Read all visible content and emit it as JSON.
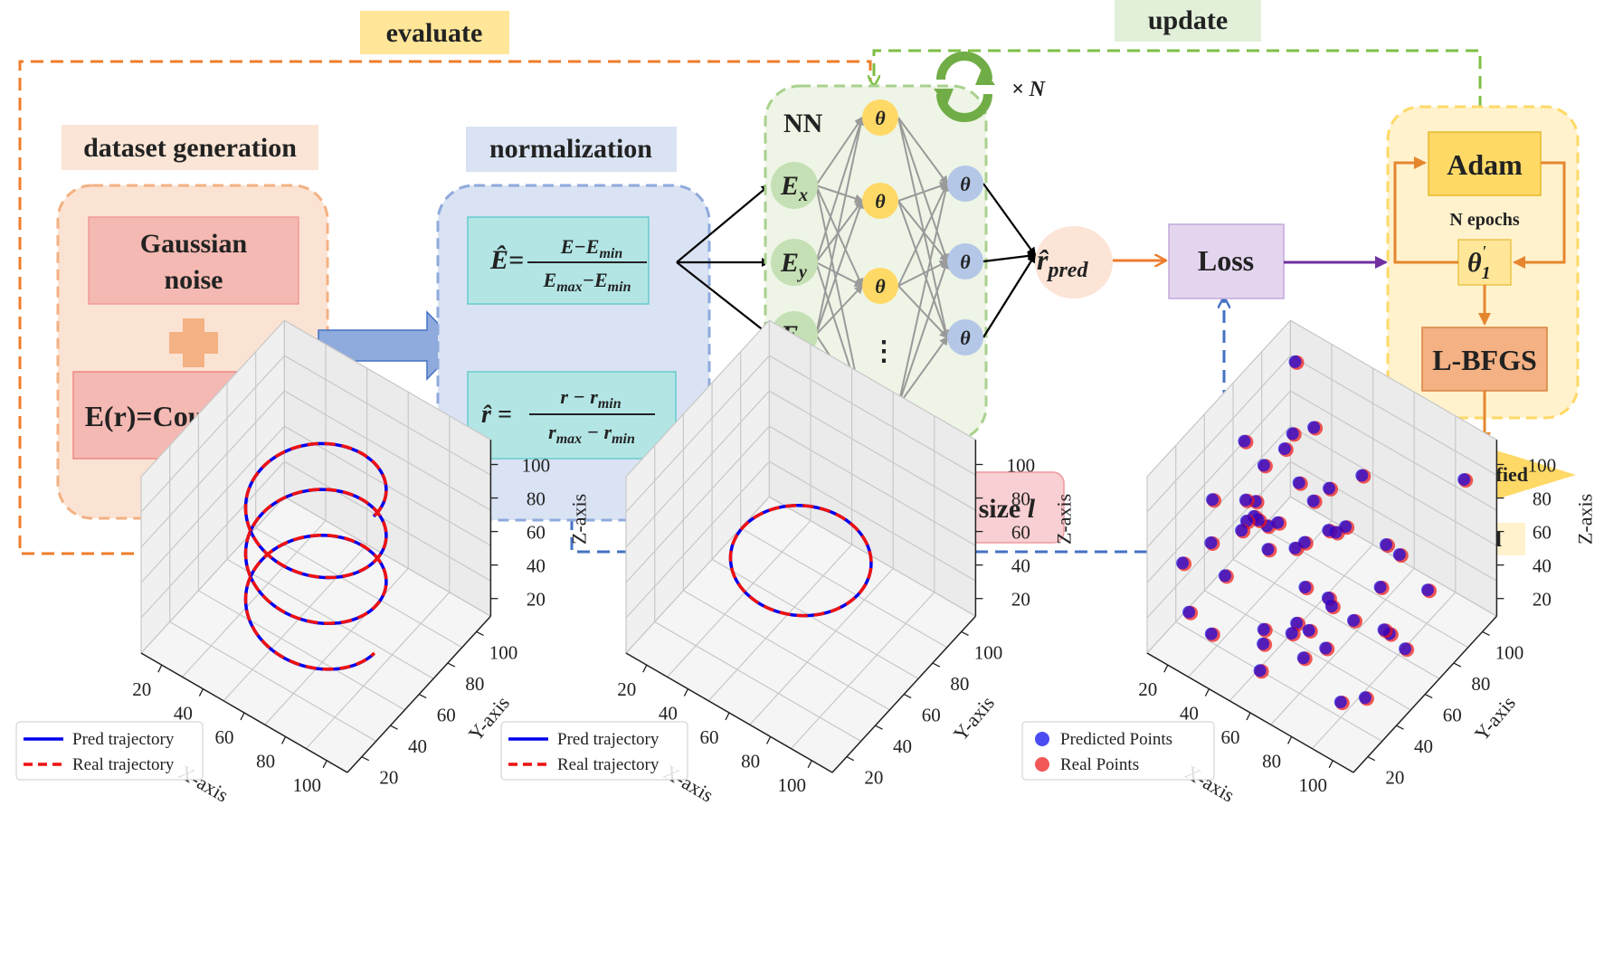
{
  "top": {
    "evaluate_label": "evaluate",
    "update_label": "update",
    "dataset_title": "dataset generation",
    "gaussian_line1": "Gaussian",
    "gaussian_line2": "noise",
    "coulomb_label": "E(r)=Coulomb(r)",
    "normalization_title": "normalization",
    "eq1_lhs": "Ê=",
    "eq1_num": "E−E",
    "eq1_num_sub": "min",
    "eq1_den_a": "E",
    "eq1_den_a_sub": "max",
    "eq1_den_b": "−E",
    "eq1_den_b_sub": "min",
    "eq2_lhs": "r̂ =",
    "eq2_num": "r − r",
    "eq2_num_sub": "min",
    "eq2_den_a": "r",
    "eq2_den_a_sub": "max",
    "eq2_den_b": " − r",
    "eq2_den_b_sub": "min",
    "nn_title": "NN",
    "times_n": "× N",
    "input_nodes": [
      {
        "main": "E",
        "sub": "x"
      },
      {
        "main": "E",
        "sub": "y"
      },
      {
        "main": "E",
        "sub": "z"
      }
    ],
    "theta": "θ",
    "ellipsis": "⋮",
    "r_pred_main": "r̂",
    "r_pred_sub": "pred",
    "loss_label": "Loss",
    "step_size_label": "choose step size",
    "step_size_var": "l",
    "adam_label": "Adam",
    "n_epochs_label": "N epochs",
    "theta1_main": "θ",
    "theta1_prime": "'",
    "theta1_sub": "1",
    "lbfgs_label": "L-BFGS",
    "if_satisfied_label": "if satisfied",
    "end_label": "end"
  },
  "colors": {
    "orange_dash": "#ef7d2a",
    "green_dash": "#7dbf44",
    "blue_dash": "#4472c4",
    "purple": "#7030a0",
    "pred": "#0000ee",
    "real": "#ee1111",
    "theta_fill": "#ffd966",
    "input_fill": "#c5e0b4",
    "out_fill": "#b4c7e7"
  },
  "chart_data": [
    {
      "type": "line",
      "projection": "3d",
      "shape": "helix",
      "turns": 3,
      "xlabel": "X-axis",
      "ylabel": "Y-axis",
      "zlabel": "Z-axis",
      "x_ticks": [
        "20",
        "40",
        "60",
        "80",
        "100"
      ],
      "y_ticks": [
        "20",
        "40",
        "60",
        "80",
        "100"
      ],
      "z_ticks": [
        "20",
        "40",
        "60",
        "80",
        "100"
      ],
      "grid": true,
      "legend_position": "bottom-left",
      "series": [
        {
          "name": "Pred trajectory",
          "style": "solid"
        },
        {
          "name": "Real trajectory",
          "style": "dashed"
        }
      ]
    },
    {
      "type": "line",
      "projection": "3d",
      "shape": "circle",
      "turns": 1,
      "xlabel": "X-axis",
      "ylabel": "Y-axis",
      "zlabel": "Z-axis",
      "x_ticks": [
        "20",
        "40",
        "60",
        "80",
        "100"
      ],
      "y_ticks": [
        "20",
        "40",
        "60",
        "80",
        "100"
      ],
      "z_ticks": [
        "20",
        "40",
        "60",
        "80",
        "100"
      ],
      "grid": true,
      "legend_position": "bottom-left",
      "series": [
        {
          "name": "Pred trajectory",
          "style": "solid"
        },
        {
          "name": "Real trajectory",
          "style": "dashed"
        }
      ]
    },
    {
      "type": "scatter",
      "projection": "3d",
      "xlabel": "X-axis",
      "ylabel": "Y-axis",
      "zlabel": "Z-axis",
      "x_ticks": [
        "20",
        "40",
        "60",
        "80",
        "100"
      ],
      "y_ticks": [
        "20",
        "40",
        "60",
        "80",
        "100"
      ],
      "z_ticks": [
        "20",
        "40",
        "60",
        "80",
        "100"
      ],
      "grid": true,
      "legend_position": "bottom-left",
      "series": [
        {
          "name": "Predicted Points"
        },
        {
          "name": "Real Points"
        }
      ]
    }
  ]
}
